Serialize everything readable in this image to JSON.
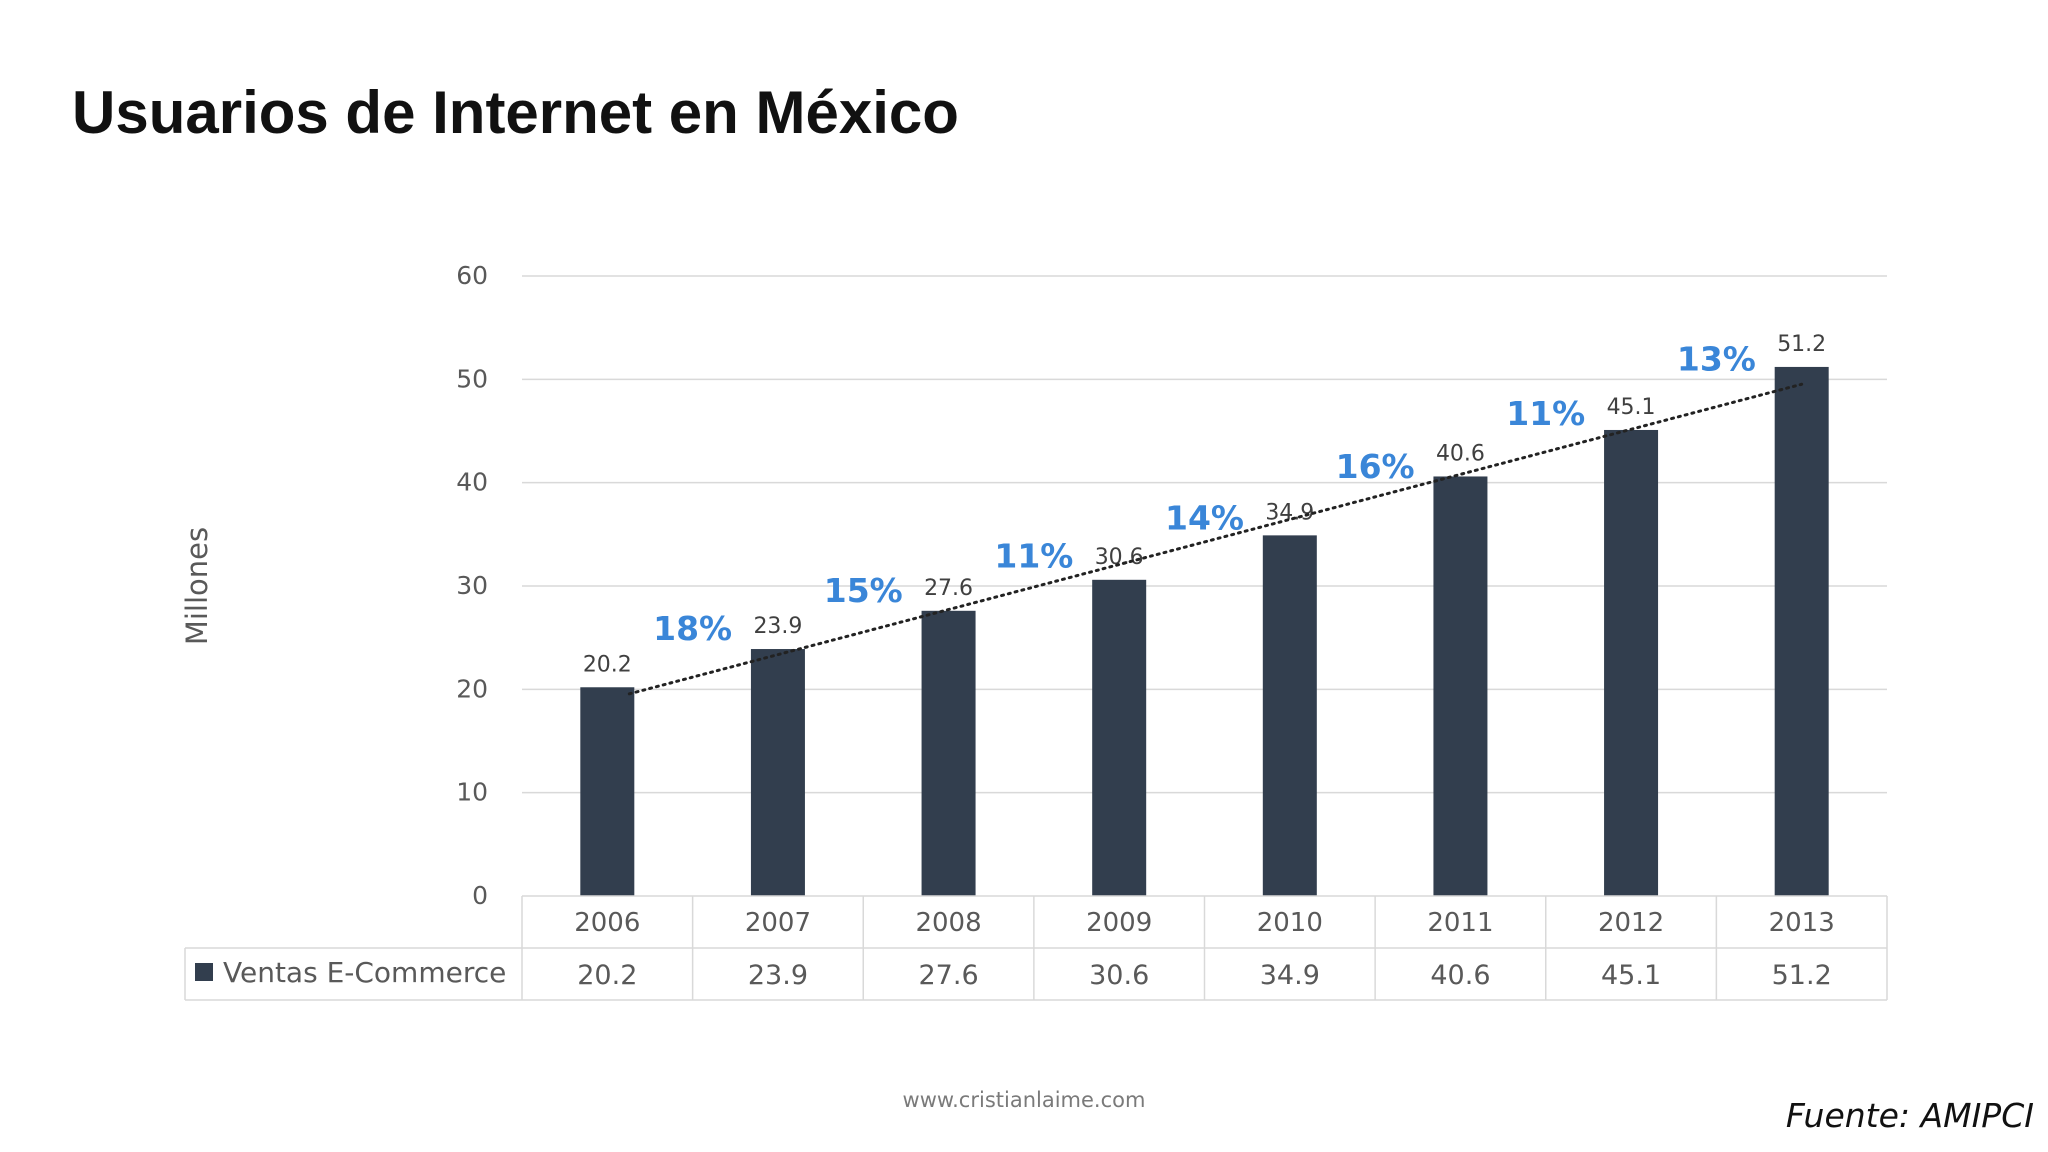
{
  "page": {
    "title": "Usuarios de Internet en México",
    "footer_url": "www.cristianlaime.com",
    "source": "Fuente: AMIPCI"
  },
  "chart_data": {
    "type": "bar",
    "title": "",
    "xlabel": "",
    "ylabel": "Millones",
    "ylim": [
      0,
      60
    ],
    "yticks": [
      0,
      10,
      20,
      30,
      40,
      50,
      60
    ],
    "grid": true,
    "categories": [
      "2006",
      "2007",
      "2008",
      "2009",
      "2010",
      "2011",
      "2012",
      "2013"
    ],
    "series": [
      {
        "name": "Ventas E-Commerce",
        "values": [
          20.2,
          23.9,
          27.6,
          30.6,
          34.9,
          40.6,
          45.1,
          51.2
        ],
        "color": "#323e4e"
      }
    ],
    "data_table": {
      "row_label": "Ventas E-Commerce",
      "values": [
        "20.2",
        "23.9",
        "27.6",
        "30.6",
        "34.9",
        "40.6",
        "45.1",
        "51.2"
      ]
    },
    "trendline": {
      "type": "linear",
      "style": "dotted",
      "color": "#222222"
    },
    "growth_annotations": [
      "18%",
      "15%",
      "11%",
      "14%",
      "16%",
      "11%",
      "13%"
    ],
    "annotation_color": "#3a86d8"
  }
}
